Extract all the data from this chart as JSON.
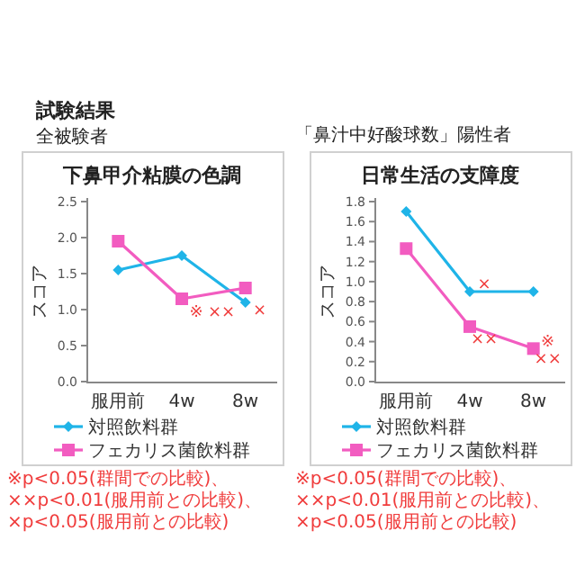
{
  "chart_data": [
    {
      "type": "other",
      "title": "試験結果"
    },
    {
      "type": "line",
      "subtitle": "全被験者",
      "title": "下鼻甲介粘膜の色調",
      "ylabel": "スコア",
      "categories": [
        "服用前",
        "4w",
        "8w"
      ],
      "series": [
        {
          "name": "対照飲料群",
          "color": "#1fb4e8",
          "marker": "diamond",
          "values": [
            1.55,
            1.75,
            1.1
          ]
        },
        {
          "name": "フェカリス菌飲料群",
          "color": "#f25cc0",
          "marker": "square",
          "values": [
            1.95,
            1.15,
            1.3
          ]
        }
      ],
      "ylim": [
        0,
        2.5
      ],
      "yticks": [
        {
          "value": 0,
          "label": "0.0"
        },
        0.5,
        {
          "value": 1,
          "label": "1.0"
        },
        1.5,
        {
          "value": 2,
          "label": "2.0"
        },
        2.5
      ],
      "legend": "bottom",
      "grid": false,
      "annotations": [
        {
          "text": "※",
          "x": "4w",
          "y": 1.0
        },
        {
          "text": "××",
          "x": "4w",
          "y": 1.0
        },
        {
          "text": "×",
          "x": "8w",
          "y": 1.02
        },
        "※p<0.05(群間での比較)、××p<0.01(服用前との比較)、×p<0.05(服用前との比較)"
      ]
    },
    {
      "type": "line",
      "subtitle": "「鼻汁中好酸球数」陽性者",
      "title": "日常生活の支障度",
      "ylabel": "スコア",
      "categories": [
        "服用前",
        "4w",
        "8w"
      ],
      "series": [
        {
          "name": "対照飲料群",
          "color": "#1fb4e8",
          "marker": "diamond",
          "values": [
            1.7,
            0.9,
            0.9
          ]
        },
        {
          "name": "フェカリス菌飲料群",
          "color": "#f25cc0",
          "marker": "square",
          "values": [
            1.33,
            0.55,
            0.33
          ]
        }
      ],
      "ylim": [
        0,
        1.8
      ],
      "yticks": [
        {
          "value": 0,
          "label": "0.0"
        },
        0.2,
        0.4,
        0.6,
        0.8,
        {
          "value": 1,
          "label": "1.0"
        },
        1.2,
        1.4,
        1.6,
        1.8
      ],
      "legend": "bottom",
      "grid": false,
      "annotations": [
        {
          "text": "×",
          "x": "4w",
          "y": 1.0
        },
        {
          "text": "××",
          "x": "4w",
          "y": 0.45
        },
        {
          "text": "※",
          "x": "8w",
          "y": 0.42
        },
        {
          "text": "××",
          "x": "8w",
          "y": 0.25
        },
        "※p<0.05(群間での比較)、××p<0.01(服用前との比較)、×p<0.05(服用前との比較)"
      ]
    }
  ]
}
